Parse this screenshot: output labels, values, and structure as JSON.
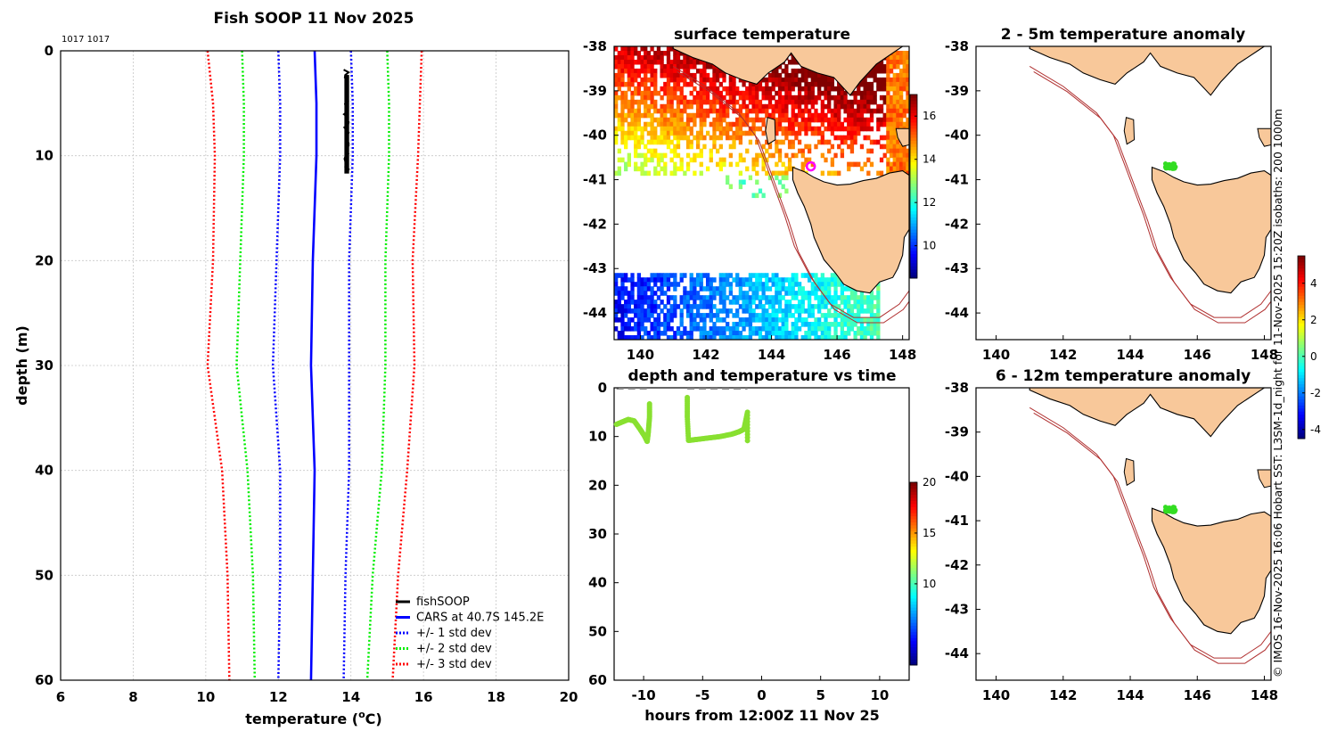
{
  "header": {
    "main_title": "Fish SOOP 11 Nov 2025",
    "counts": "1017 1017"
  },
  "credit": "© IMOS 16-Nov-2025 16:06 Hobart SST: L3SM-1d_night for 11-Nov-2025 15:20Z isobaths: 200  1000m",
  "chart_data": [
    {
      "id": "profile",
      "type": "line",
      "title": "Fish SOOP 11 Nov 2025",
      "xlabel": "temperature (°C)",
      "xlabel_main": "temperature (",
      "xlabel_sup": "o",
      "xlabel_end": "C)",
      "ylabel": "depth (m)",
      "xlim": [
        6,
        20
      ],
      "ylim": [
        60,
        0
      ],
      "xticks": [
        6,
        8,
        10,
        12,
        14,
        16,
        18,
        20
      ],
      "yticks": [
        0,
        10,
        20,
        30,
        40,
        50,
        60
      ],
      "depth": [
        0,
        5,
        10,
        20,
        30,
        40,
        50,
        60
      ],
      "cars_mean": [
        13.0,
        13.05,
        13.05,
        12.95,
        12.9,
        13.0,
        12.95,
        12.9
      ],
      "std1": [
        1.0,
        1.0,
        1.0,
        1.0,
        1.05,
        0.95,
        0.9,
        0.9
      ],
      "std2": [
        2.0,
        2.0,
        2.0,
        2.0,
        2.05,
        1.85,
        1.65,
        1.55
      ],
      "std3": [
        2.95,
        2.85,
        2.8,
        2.75,
        2.85,
        2.55,
        2.35,
        2.25
      ],
      "fishsoop": {
        "depth_min": 1.8,
        "depth_max": 11.7,
        "temp_min": 13.8,
        "temp_max": 13.95
      },
      "legend": [
        {
          "label": "fishSOOP",
          "color": "#000000",
          "style": "solid"
        },
        {
          "label": "CARS at 40.7S 145.2E",
          "color": "#0000ff",
          "style": "solid"
        },
        {
          "label": "+/- 1 std dev",
          "color": "#0000ff",
          "style": "dotted"
        },
        {
          "label": "+/- 2 std dev",
          "color": "#00ee00",
          "style": "dotted"
        },
        {
          "label": "+/- 3 std dev",
          "color": "#ff0000",
          "style": "dotted"
        }
      ]
    },
    {
      "id": "surface",
      "type": "heatmap",
      "title": "surface temperature",
      "xticks": [
        140,
        142,
        144,
        146,
        148
      ],
      "yticks": [
        -38,
        -39,
        -40,
        -41,
        -42,
        -43,
        -44
      ],
      "xlim": [
        139.2,
        148.2
      ],
      "ylim": [
        -38,
        -44.6
      ],
      "colorbar": {
        "min": 8.5,
        "max": 17,
        "ticks": [
          10,
          12,
          14,
          16
        ]
      },
      "marker": {
        "lon": 145.2,
        "lat": -40.7
      }
    },
    {
      "id": "anom1",
      "type": "heatmap",
      "title": "2 - 5m temperature anomaly",
      "xticks": [
        140,
        142,
        144,
        146,
        148
      ],
      "yticks": [
        -38,
        -39,
        -40,
        -41,
        -42,
        -43,
        -44
      ],
      "xlim": [
        139.4,
        148.2
      ],
      "ylim": [
        -38,
        -44.6
      ],
      "colorbar": {
        "min": -4.5,
        "max": 5.5,
        "ticks": [
          -4,
          -2,
          0,
          2,
          4
        ]
      },
      "points": {
        "lon": 145.2,
        "lat": -40.7
      }
    },
    {
      "id": "anom2",
      "type": "heatmap",
      "title": "6 - 12m temperature anomaly",
      "xticks": [
        140,
        142,
        144,
        146,
        148
      ],
      "yticks": [
        -38,
        -39,
        -40,
        -41,
        -42,
        -43,
        -44
      ],
      "xlim": [
        139.4,
        148.2
      ],
      "ylim": [
        -38,
        -44.6
      ],
      "points": {
        "lon": 145.2,
        "lat": -40.75
      }
    },
    {
      "id": "timeseries",
      "type": "scatter",
      "title": "depth and temperature vs time",
      "xlabel": "hours from 12:00Z 11 Nov 25",
      "xlim": [
        -12.5,
        12.5
      ],
      "ylim": [
        60,
        0
      ],
      "xticks": [
        -10,
        -5,
        0,
        5,
        10
      ],
      "yticks": [
        0,
        10,
        20,
        30,
        40,
        50,
        60
      ],
      "colorbar": {
        "min": 2,
        "max": 20,
        "ticks": [
          10,
          15,
          20
        ]
      },
      "segments": [
        {
          "t": [
            -12.3,
            -11.8,
            -11.3,
            -10.8,
            -10.3,
            -9.9,
            -9.7,
            -9.6,
            -9.5,
            -9.5
          ],
          "d": [
            7.5,
            7.0,
            6.5,
            6.8,
            8.5,
            10.0,
            11.0,
            9.0,
            6.0,
            3.0
          ]
        },
        {
          "t": [
            -6.3,
            -6.3,
            -6.2,
            -5.5,
            -4.5,
            -3.5,
            -2.5,
            -1.9,
            -1.5,
            -1.2,
            -1.2
          ],
          "d": [
            2.0,
            6.0,
            10.8,
            10.6,
            10.3,
            10.0,
            9.5,
            9.0,
            8.5,
            5.0,
            11.5
          ]
        }
      ],
      "gap_bars": [
        [
          -12.3,
          -9.5
        ],
        [
          -6.3,
          -1.2
        ]
      ]
    }
  ]
}
